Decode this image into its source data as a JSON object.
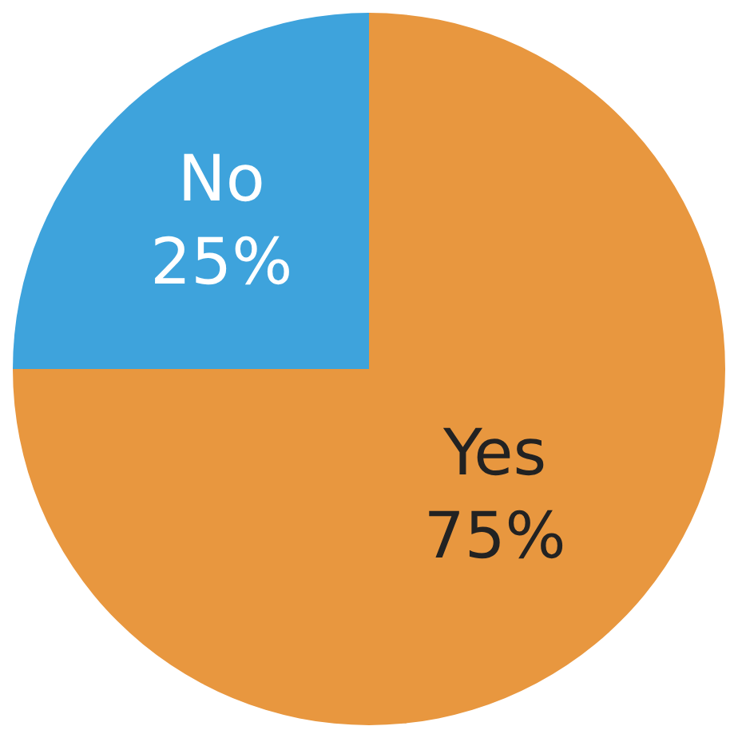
{
  "chart_data": {
    "type": "pie",
    "categories": [
      "Yes",
      "No"
    ],
    "values": [
      75,
      25
    ],
    "colors": [
      "#e8973f",
      "#3ea3dc"
    ],
    "value_labels": [
      "75%",
      "25%"
    ],
    "legend": false
  }
}
